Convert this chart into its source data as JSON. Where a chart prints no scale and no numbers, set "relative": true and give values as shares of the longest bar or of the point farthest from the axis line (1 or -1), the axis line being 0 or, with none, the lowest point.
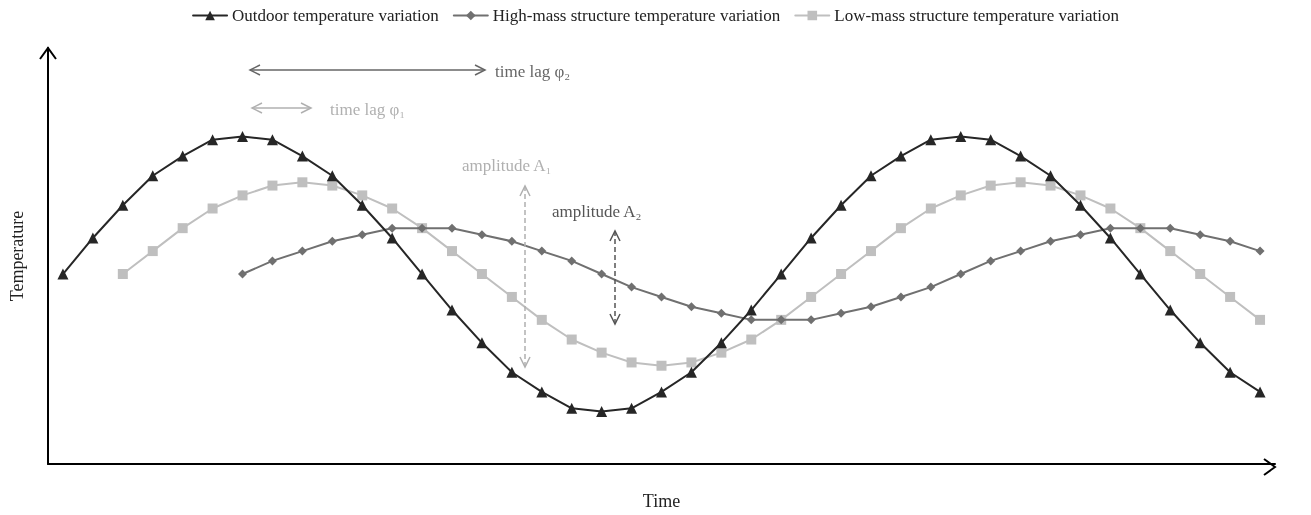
{
  "chart_data": {
    "type": "line",
    "relative": true,
    "xlabel": "Time",
    "ylabel": "Temperature",
    "legend": "top",
    "grid": false,
    "categories": [
      null,
      null,
      null,
      null,
      null,
      null,
      null,
      null,
      null,
      null,
      null,
      null,
      null,
      null,
      null,
      null,
      null,
      null,
      null,
      null,
      null,
      null,
      null,
      null,
      null,
      null,
      null,
      null,
      null,
      null,
      null,
      null,
      null,
      null,
      null,
      null,
      null,
      null,
      null,
      null,
      null
    ],
    "series": [
      {
        "name": "Outdoor temperature variation",
        "color": "#262626",
        "marker": "triangle",
        "values": [
          0.58,
          0.69,
          0.79,
          0.88,
          0.94,
          0.99,
          1.0,
          0.99,
          0.94,
          0.88,
          0.79,
          0.69,
          0.58,
          0.47,
          0.37,
          0.28,
          0.22,
          0.17,
          0.16,
          0.17,
          0.22,
          0.28,
          0.37,
          0.47,
          0.58,
          0.69,
          0.79,
          0.88,
          0.94,
          0.99,
          1.0,
          0.99,
          0.94,
          0.88,
          0.79,
          0.69,
          0.58,
          0.47,
          0.37,
          0.28,
          0.22
        ]
      },
      {
        "name": "High-mass structure temperature variation",
        "color": "#707070",
        "marker": "diamond",
        "values": [
          null,
          null,
          null,
          null,
          null,
          null,
          0.58,
          0.62,
          0.65,
          0.68,
          0.7,
          0.72,
          0.72,
          0.72,
          0.7,
          0.68,
          0.65,
          0.62,
          0.58,
          0.54,
          0.51,
          0.48,
          0.46,
          0.44,
          0.44,
          0.44,
          0.46,
          0.48,
          0.51,
          0.54,
          0.58,
          0.62,
          0.65,
          0.68,
          0.7,
          0.72,
          0.72,
          0.72,
          0.7,
          0.68,
          0.65
        ]
      },
      {
        "name": "Low-mass structure temperature variation",
        "color": "#bfbfbf",
        "marker": "square",
        "values": [
          null,
          null,
          0.58,
          0.65,
          0.72,
          0.78,
          0.82,
          0.85,
          0.86,
          0.85,
          0.82,
          0.78,
          0.72,
          0.65,
          0.58,
          0.51,
          0.44,
          0.38,
          0.34,
          0.31,
          0.3,
          0.31,
          0.34,
          0.38,
          0.44,
          0.51,
          0.58,
          0.65,
          0.72,
          0.78,
          0.82,
          0.85,
          0.86,
          0.85,
          0.82,
          0.78,
          0.72,
          0.65,
          0.58,
          0.51,
          0.44
        ]
      }
    ],
    "annotations": [
      "time lag φ₂",
      "time lag φ₁",
      "amplitude A₁",
      "amplitude A₂"
    ]
  }
}
